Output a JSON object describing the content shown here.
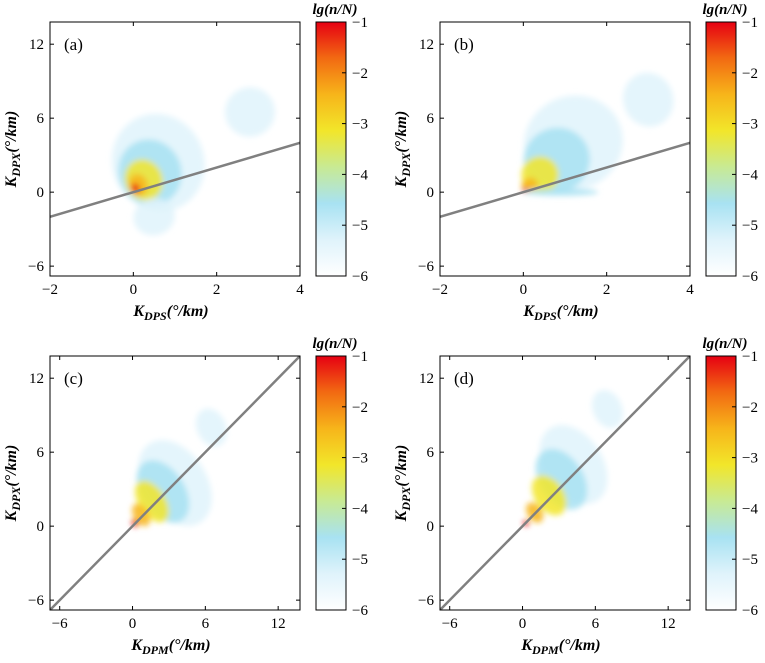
{
  "colors": {
    "scale": [
      "#ffffff",
      "#dff3fb",
      "#a8e2f2",
      "#c8ea94",
      "#f2e62a",
      "#f7b51a",
      "#f26a12",
      "#e60012"
    ],
    "diagonal": "#808080",
    "axis": "#000000"
  },
  "chart_data": [
    {
      "type": "heatmap",
      "panel_label": "(a)",
      "xlabel_main": "K",
      "xlabel_sub": "DPS",
      "xlabel_unit": "(°/km)",
      "ylabel_main": "K",
      "ylabel_sub": "DPX",
      "ylabel_unit": "(°/km)",
      "xlim": [
        -2,
        4
      ],
      "ylim": [
        -6.8,
        13.8
      ],
      "xticks": [
        -2,
        0,
        2,
        4
      ],
      "xtick_labels": [
        "−2",
        "0",
        "2",
        "4"
      ],
      "yticks": [
        -6,
        0,
        6,
        12
      ],
      "ytick_labels": [
        "−6",
        "0",
        "6",
        "12"
      ],
      "reference_line": "y = x",
      "colorbar": {
        "title": "lg(n/N)",
        "range": [
          -6,
          -1
        ],
        "ticks": [
          -1,
          -2,
          -3,
          -4,
          -5,
          -6
        ],
        "tick_labels": [
          "−1",
          "−2",
          "−3",
          "−4",
          "−5",
          "−6"
        ]
      },
      "density_blobs": [
        {
          "x": 0.6,
          "y": 2.4,
          "sx": 1.1,
          "sy": 4.0,
          "rho": 0.5,
          "level": -5.1
        },
        {
          "x": 0.4,
          "y": 1.6,
          "sx": 0.75,
          "sy": 2.7,
          "rho": 0.55,
          "level": -4.3
        },
        {
          "x": 0.25,
          "y": 1.0,
          "sx": 0.45,
          "sy": 1.7,
          "rho": 0.55,
          "level": -3.3
        },
        {
          "x": 0.12,
          "y": 0.6,
          "sx": 0.22,
          "sy": 0.9,
          "rho": 0.5,
          "level": -2.3
        },
        {
          "x": 0.05,
          "y": 0.3,
          "sx": 0.1,
          "sy": 0.4,
          "rho": 0.4,
          "level": -1.3
        },
        {
          "x": 2.8,
          "y": 6.5,
          "sx": 0.6,
          "sy": 2.0,
          "rho": 0.4,
          "level": -5.5
        },
        {
          "x": 0.5,
          "y": -2.0,
          "sx": 0.5,
          "sy": 1.5,
          "rho": 0.3,
          "level": -5.3
        }
      ]
    },
    {
      "type": "heatmap",
      "panel_label": "(b)",
      "xlabel_main": "K",
      "xlabel_sub": "DPS",
      "xlabel_unit": "(°/km)",
      "ylabel_main": "K",
      "ylabel_sub": "DPX",
      "ylabel_unit": "(°/km)",
      "xlim": [
        -2,
        4
      ],
      "ylim": [
        -6.8,
        13.8
      ],
      "xticks": [
        -2,
        0,
        2,
        4
      ],
      "xtick_labels": [
        "−2",
        "0",
        "2",
        "4"
      ],
      "yticks": [
        -6,
        0,
        6,
        12
      ],
      "ytick_labels": [
        "−6",
        "0",
        "6",
        "12"
      ],
      "reference_line": "y = x",
      "colorbar": {
        "title": "lg(n/N)",
        "range": [
          -6,
          -1
        ],
        "ticks": [
          -1,
          -2,
          -3,
          -4,
          -5,
          -6
        ],
        "tick_labels": [
          "−1",
          "−2",
          "−3",
          "−4",
          "−5",
          "−6"
        ]
      },
      "density_blobs": [
        {
          "x": 1.2,
          "y": 4.0,
          "sx": 1.2,
          "sy": 3.8,
          "rho": 0.5,
          "level": -5.1
        },
        {
          "x": 0.8,
          "y": 2.6,
          "sx": 0.8,
          "sy": 2.6,
          "rho": 0.55,
          "level": -4.3
        },
        {
          "x": 0.4,
          "y": 1.4,
          "sx": 0.45,
          "sy": 1.5,
          "rho": 0.6,
          "level": -3.3
        },
        {
          "x": 0.15,
          "y": 0.55,
          "sx": 0.2,
          "sy": 0.6,
          "rho": 0.6,
          "level": -2.3
        },
        {
          "x": 0.05,
          "y": 0.15,
          "sx": 0.08,
          "sy": 0.2,
          "rho": 0.5,
          "level": -1.3
        },
        {
          "x": 0.9,
          "y": 0.0,
          "sx": 0.9,
          "sy": 0.3,
          "rho": 0.0,
          "level": -4.6
        },
        {
          "x": 3.0,
          "y": 7.5,
          "sx": 0.6,
          "sy": 2.2,
          "rho": 0.4,
          "level": -5.5
        }
      ]
    },
    {
      "type": "heatmap",
      "panel_label": "(c)",
      "xlabel_main": "K",
      "xlabel_sub": "DPM",
      "xlabel_unit": "(°/km)",
      "ylabel_main": "K",
      "ylabel_sub": "DPX",
      "ylabel_unit": "(°/km)",
      "xlim": [
        -6.8,
        13.8
      ],
      "ylim": [
        -6.8,
        13.8
      ],
      "xticks": [
        -6,
        0,
        6,
        12
      ],
      "xtick_labels": [
        "−6",
        "0",
        "6",
        "12"
      ],
      "yticks": [
        -6,
        0,
        6,
        12
      ],
      "ytick_labels": [
        "−6",
        "0",
        "6",
        "12"
      ],
      "reference_line": "y = x",
      "colorbar": {
        "title": "lg(n/N)",
        "range": [
          -6,
          -1
        ],
        "ticks": [
          -1,
          -2,
          -3,
          -4,
          -5,
          -6
        ],
        "tick_labels": [
          "−1",
          "−2",
          "−3",
          "−4",
          "−5",
          "−6"
        ]
      },
      "density_blobs": [
        {
          "x": 3.5,
          "y": 3.5,
          "sx": 2.6,
          "sy": 3.8,
          "rho": 0.75,
          "level": -5.1
        },
        {
          "x": 2.5,
          "y": 2.8,
          "sx": 1.8,
          "sy": 2.8,
          "rho": 0.75,
          "level": -4.3
        },
        {
          "x": 1.6,
          "y": 2.0,
          "sx": 1.1,
          "sy": 1.9,
          "rho": 0.75,
          "level": -3.3
        },
        {
          "x": 0.7,
          "y": 0.9,
          "sx": 0.6,
          "sy": 1.0,
          "rho": 0.7,
          "level": -2.3
        },
        {
          "x": 0.2,
          "y": 0.25,
          "sx": 0.25,
          "sy": 0.35,
          "rho": 0.6,
          "level": -1.3
        },
        {
          "x": 6.5,
          "y": 8.0,
          "sx": 1.2,
          "sy": 1.6,
          "rho": 0.5,
          "level": -5.5
        }
      ]
    },
    {
      "type": "heatmap",
      "panel_label": "(d)",
      "xlabel_main": "K",
      "xlabel_sub": "DPM",
      "xlabel_unit": "(°/km)",
      "ylabel_main": "K",
      "ylabel_sub": "DPX",
      "ylabel_unit": "(°/km)",
      "xlim": [
        -6.8,
        13.8
      ],
      "ylim": [
        -6.8,
        13.8
      ],
      "xticks": [
        -6,
        0,
        6,
        12
      ],
      "xtick_labels": [
        "−6",
        "0",
        "6",
        "12"
      ],
      "yticks": [
        -6,
        0,
        6,
        12
      ],
      "ytick_labels": [
        "−6",
        "0",
        "6",
        "12"
      ],
      "reference_line": "y = x",
      "colorbar": {
        "title": "lg(n/N)",
        "range": [
          -6,
          -1
        ],
        "ticks": [
          -1,
          -2,
          -3,
          -4,
          -5,
          -6
        ],
        "tick_labels": [
          "−1",
          "−2",
          "−3",
          "−4",
          "−5",
          "−6"
        ]
      },
      "density_blobs": [
        {
          "x": 4.2,
          "y": 5.0,
          "sx": 2.4,
          "sy": 3.5,
          "rho": 0.75,
          "level": -5.1
        },
        {
          "x": 3.2,
          "y": 3.8,
          "sx": 1.8,
          "sy": 2.7,
          "rho": 0.75,
          "level": -4.3
        },
        {
          "x": 2.2,
          "y": 2.5,
          "sx": 1.2,
          "sy": 1.8,
          "rho": 0.8,
          "level": -3.3
        },
        {
          "x": 1.0,
          "y": 1.1,
          "sx": 0.6,
          "sy": 0.9,
          "rho": 0.75,
          "level": -2.3
        },
        {
          "x": 0.3,
          "y": 0.25,
          "sx": 0.25,
          "sy": 0.25,
          "rho": 0.6,
          "level": -1.3
        },
        {
          "x": 7.0,
          "y": 9.5,
          "sx": 1.2,
          "sy": 1.6,
          "rho": 0.5,
          "level": -5.5
        }
      ]
    }
  ]
}
